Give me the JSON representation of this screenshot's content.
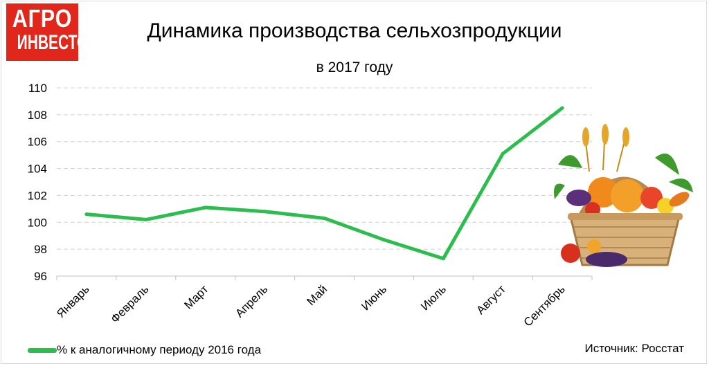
{
  "logo": {
    "line1": "АГРО",
    "line2": "ИНВЕСТОР"
  },
  "chart_data": {
    "type": "line",
    "title": "Динамика производства сельхозпродукции",
    "subtitle": "в 2017 году",
    "categories": [
      "Январь",
      "Февраль",
      "Март",
      "Апрель",
      "Май",
      "Июнь",
      "Июль",
      "Август",
      "Сентябрь"
    ],
    "series": [
      {
        "name": "% к аналогичному периоду 2016 года",
        "values": [
          100.6,
          100.2,
          101.1,
          100.8,
          100.3,
          98.7,
          97.3,
          105.1,
          108.5
        ],
        "color": "#2dbc4e"
      }
    ],
    "ylim": [
      96,
      110
    ],
    "yticks": [
      96,
      98,
      100,
      102,
      104,
      106,
      108,
      110
    ],
    "grid": true,
    "legend": "bottom-left"
  },
  "source": "Источник: Росстат"
}
